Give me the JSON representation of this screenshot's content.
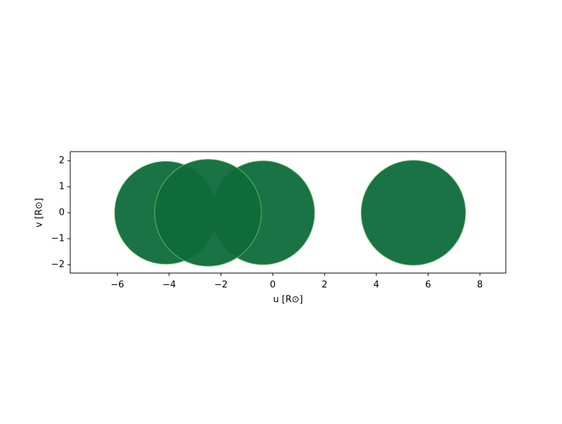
{
  "chart_data": {
    "type": "mesh",
    "xlabel": "u [R⊙]",
    "ylabel": "v [R⊙]",
    "xlim": [
      -7.82,
      9.0
    ],
    "ylim": [
      -2.32,
      2.35
    ],
    "xticks": [
      {
        "value": -6,
        "label": "−6"
      },
      {
        "value": -4,
        "label": "−4"
      },
      {
        "value": -2,
        "label": "−2"
      },
      0,
      2,
      4,
      6,
      8
    ],
    "yticks": [
      {
        "value": -2,
        "label": "−2"
      },
      {
        "value": -1,
        "label": "−1"
      },
      0,
      1,
      2
    ],
    "color": "#0e6b3a",
    "edge_color": "#7fcf6f",
    "bodies": [
      {
        "u": -4.13,
        "v": 0,
        "radius": 1.98
      },
      {
        "u": -0.38,
        "v": 0,
        "radius": 2.0
      },
      {
        "u": -2.5,
        "v": 0,
        "radius": 2.06
      },
      {
        "u": 5.43,
        "v": 0,
        "radius": 2.02
      }
    ]
  }
}
